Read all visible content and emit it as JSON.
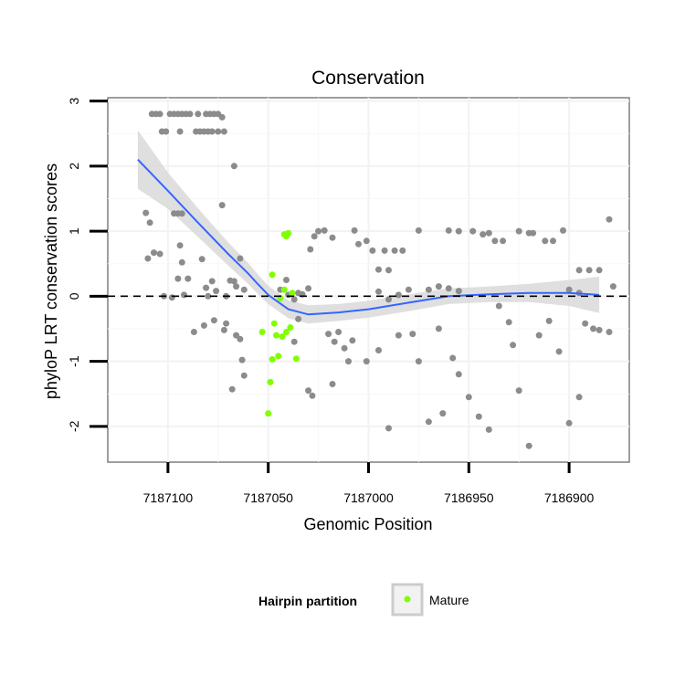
{
  "chart_data": {
    "type": "scatter",
    "title": "Conservation",
    "xlabel": "Genomic Position",
    "ylabel": "phyloP LRT conservation scores",
    "xlim": [
      7187130,
      7186870
    ],
    "x_reversed": true,
    "ylim": [
      -2.55,
      3.05
    ],
    "x_ticks": [
      7187100,
      7187050,
      7187000,
      7186950,
      7186900
    ],
    "y_ticks": [
      3,
      2,
      1,
      0,
      -1,
      -2
    ],
    "grid": true,
    "reference_line": {
      "y": 0,
      "style": "dashed",
      "color": "#000000"
    },
    "legend": {
      "title": "Hairpin partition",
      "entries": [
        "Mature"
      ],
      "placement": "bottom"
    },
    "colors": {
      "other": "#8c8c8c",
      "mature": "#80ff00",
      "smooth": "#3366ff",
      "band": "#d9d9d9"
    },
    "series": [
      {
        "name": "Other",
        "color": "#8c8c8c",
        "points": [
          [
            7187108,
            2.8
          ],
          [
            7187106,
            2.8
          ],
          [
            7187104,
            2.8
          ],
          [
            7187099,
            2.8
          ],
          [
            7187097,
            2.8
          ],
          [
            7187095,
            2.8
          ],
          [
            7187093,
            2.8
          ],
          [
            7187091,
            2.8
          ],
          [
            7187089,
            2.8
          ],
          [
            7187085,
            2.8
          ],
          [
            7187081,
            2.8
          ],
          [
            7187079,
            2.8
          ],
          [
            7187077,
            2.8
          ],
          [
            7187075,
            2.8
          ],
          [
            7187073,
            2.75
          ],
          [
            7187103,
            2.53
          ],
          [
            7187101,
            2.53
          ],
          [
            7187094,
            2.53
          ],
          [
            7187086,
            2.53
          ],
          [
            7187084,
            2.53
          ],
          [
            7187082,
            2.53
          ],
          [
            7187080,
            2.53
          ],
          [
            7187078,
            2.53
          ],
          [
            7187072,
            2.53
          ],
          [
            7187075,
            2.53
          ],
          [
            7187067,
            2.0
          ],
          [
            7187073,
            1.4
          ],
          [
            7187097,
            1.27
          ],
          [
            7187095,
            1.27
          ],
          [
            7187093,
            1.27
          ],
          [
            7187111,
            1.28
          ],
          [
            7187109,
            1.13
          ],
          [
            7187107,
            0.67
          ],
          [
            7187104,
            0.65
          ],
          [
            7187110,
            0.58
          ],
          [
            7187094,
            0.78
          ],
          [
            7187093,
            0.52
          ],
          [
            7187090,
            0.27
          ],
          [
            7187095,
            0.27
          ],
          [
            7187083,
            0.57
          ],
          [
            7187078,
            0.23
          ],
          [
            7187081,
            0.13
          ],
          [
            7187069,
            0.24
          ],
          [
            7187067,
            0.23
          ],
          [
            7187064,
            0.58
          ],
          [
            7187102,
            0.0
          ],
          [
            7187098,
            -0.02
          ],
          [
            7187092,
            0.02
          ],
          [
            7187080,
            0.0
          ],
          [
            7187076,
            0.08
          ],
          [
            7187071,
            0.0
          ],
          [
            7187066,
            0.15
          ],
          [
            7187062,
            0.1
          ],
          [
            7187087,
            -0.55
          ],
          [
            7187082,
            -0.45
          ],
          [
            7187077,
            -0.37
          ],
          [
            7187072,
            -0.52
          ],
          [
            7187071,
            -0.42
          ],
          [
            7187066,
            -0.6
          ],
          [
            7187064,
            -0.66
          ],
          [
            7187062,
            -1.22
          ],
          [
            7187063,
            -0.98
          ],
          [
            7187068,
            -1.43
          ],
          [
            7187041,
            0.25
          ],
          [
            7187044,
            0.1
          ],
          [
            7187040,
            0.02
          ],
          [
            7187037,
            -0.05
          ],
          [
            7187035,
            0.05
          ],
          [
            7187033,
            0.03
          ],
          [
            7187030,
            0.12
          ],
          [
            7187037,
            -0.7
          ],
          [
            7187035,
            -0.35
          ],
          [
            7187030,
            -1.45
          ],
          [
            7187028,
            -1.53
          ],
          [
            7187020,
            -0.58
          ],
          [
            7187017,
            -0.7
          ],
          [
            7187015,
            -0.55
          ],
          [
            7187012,
            -0.8
          ],
          [
            7187010,
            -1.0
          ],
          [
            7187018,
            -1.35
          ],
          [
            7187025,
            1.0
          ],
          [
            7187029,
            0.72
          ],
          [
            7187027,
            0.92
          ],
          [
            7187022,
            1.01
          ],
          [
            7187018,
            0.9
          ],
          [
            7187007,
            1.01
          ],
          [
            7187005,
            0.8
          ],
          [
            7187001,
            0.85
          ],
          [
            7186998,
            0.7
          ],
          [
            7186995,
            0.41
          ],
          [
            7186992,
            0.7
          ],
          [
            7186990,
            0.4
          ],
          [
            7186987,
            0.7
          ],
          [
            7186983,
            0.7
          ],
          [
            7187008,
            -0.68
          ],
          [
            7187001,
            -1.0
          ],
          [
            7186995,
            -0.83
          ],
          [
            7186990,
            -2.03
          ],
          [
            7186985,
            -0.6
          ],
          [
            7186978,
            -0.58
          ],
          [
            7186975,
            -1.0
          ],
          [
            7186970,
            -1.93
          ],
          [
            7186963,
            -1.8
          ],
          [
            7186995,
            0.07
          ],
          [
            7186990,
            -0.05
          ],
          [
            7186985,
            0.02
          ],
          [
            7186980,
            0.1
          ],
          [
            7186970,
            0.1
          ],
          [
            7186965,
            0.15
          ],
          [
            7186960,
            0.12
          ],
          [
            7186955,
            0.08
          ],
          [
            7186975,
            1.01
          ],
          [
            7186960,
            1.01
          ],
          [
            7186955,
            1.0
          ],
          [
            7186948,
            1.0
          ],
          [
            7186943,
            0.95
          ],
          [
            7186940,
            0.97
          ],
          [
            7186937,
            0.85
          ],
          [
            7186933,
            0.85
          ],
          [
            7186925,
            1.0
          ],
          [
            7186920,
            0.97
          ],
          [
            7186918,
            0.97
          ],
          [
            7186912,
            0.85
          ],
          [
            7186908,
            0.85
          ],
          [
            7186903,
            1.01
          ],
          [
            7186895,
            0.4
          ],
          [
            7186890,
            0.4
          ],
          [
            7186885,
            0.4
          ],
          [
            7186880,
            1.18
          ],
          [
            7186965,
            -0.5
          ],
          [
            7186958,
            -0.95
          ],
          [
            7186955,
            -1.2
          ],
          [
            7186950,
            -1.55
          ],
          [
            7186945,
            -1.85
          ],
          [
            7186940,
            -2.05
          ],
          [
            7186935,
            -0.15
          ],
          [
            7186930,
            -0.4
          ],
          [
            7186928,
            -0.75
          ],
          [
            7186925,
            -1.45
          ],
          [
            7186920,
            -2.3
          ],
          [
            7186915,
            -0.6
          ],
          [
            7186910,
            -0.38
          ],
          [
            7186905,
            -0.85
          ],
          [
            7186900,
            -1.95
          ],
          [
            7186895,
            -1.55
          ],
          [
            7186892,
            -0.42
          ],
          [
            7186888,
            -0.5
          ],
          [
            7186885,
            -0.52
          ],
          [
            7186880,
            -0.55
          ],
          [
            7186878,
            0.15
          ],
          [
            7186895,
            0.05
          ],
          [
            7186900,
            0.1
          ]
        ]
      },
      {
        "name": "Mature",
        "color": "#80ff00",
        "points": [
          [
            7187048,
            0.33
          ],
          [
            7187042,
            0.95
          ],
          [
            7187041,
            0.92
          ],
          [
            7187040,
            0.97
          ],
          [
            7187038,
            0.05
          ],
          [
            7187042,
            0.1
          ],
          [
            7187044,
            -0.03
          ],
          [
            7187046,
            -0.6
          ],
          [
            7187047,
            -0.42
          ],
          [
            7187045,
            -0.92
          ],
          [
            7187048,
            -0.97
          ],
          [
            7187049,
            -1.32
          ],
          [
            7187050,
            -1.8
          ],
          [
            7187043,
            -0.62
          ],
          [
            7187041,
            -0.55
          ],
          [
            7187039,
            -0.48
          ],
          [
            7187036,
            -0.96
          ],
          [
            7187053,
            -0.55
          ]
        ]
      }
    ],
    "smooth": {
      "x": [
        7187115,
        7187100,
        7187085,
        7187070,
        7187060,
        7187055,
        7187050,
        7187040,
        7187030,
        7187015,
        7187000,
        7186980,
        7186960,
        7186940,
        7186920,
        7186900,
        7186885
      ],
      "y": [
        2.1,
        1.62,
        1.13,
        0.65,
        0.35,
        0.18,
        0.02,
        -0.2,
        -0.28,
        -0.25,
        -0.2,
        -0.1,
        0.0,
        0.03,
        0.05,
        0.05,
        0.02
      ],
      "se": [
        0.45,
        0.28,
        0.22,
        0.18,
        0.16,
        0.15,
        0.14,
        0.14,
        0.14,
        0.13,
        0.13,
        0.13,
        0.12,
        0.12,
        0.14,
        0.2,
        0.28
      ]
    }
  }
}
